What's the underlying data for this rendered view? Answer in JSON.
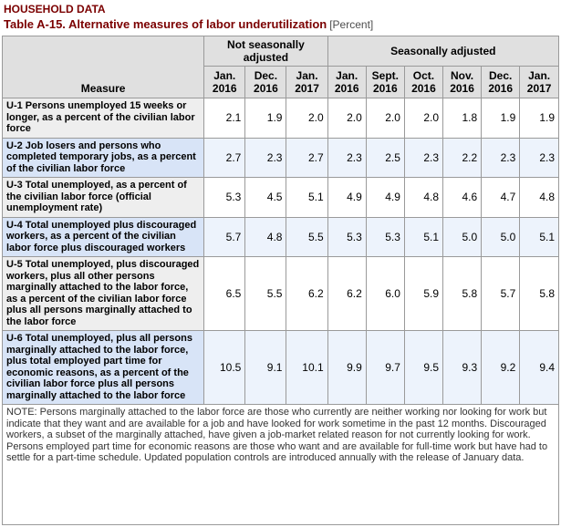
{
  "page_title": "HOUSEHOLD DATA",
  "table_title": "Table A-15. Alternative measures of labor underutilization",
  "table_title_qualifier": "[Percent]",
  "colors": {
    "heading": "#7b0000",
    "qualifier_text": "#4d4d4d",
    "header_bg": "#e0e0e0",
    "border": "#9a9a9a",
    "row_even_measure_bg": "#eeeeee",
    "row_even_value_bg": "#ffffff",
    "row_odd_measure_bg": "#d8e4f7",
    "row_odd_value_bg": "#edf3fc",
    "note_text": "#333333"
  },
  "table": {
    "measure_header": "Measure",
    "groups": [
      {
        "label": "Not seasonally adjusted",
        "span": 3
      },
      {
        "label": "Seasonally adjusted",
        "span": 6
      }
    ],
    "columns": [
      {
        "month": "Jan.",
        "year": "2016"
      },
      {
        "month": "Dec.",
        "year": "2016"
      },
      {
        "month": "Jan.",
        "year": "2017"
      },
      {
        "month": "Jan.",
        "year": "2016"
      },
      {
        "month": "Sept.",
        "year": "2016"
      },
      {
        "month": "Oct.",
        "year": "2016"
      },
      {
        "month": "Nov.",
        "year": "2016"
      },
      {
        "month": "Dec.",
        "year": "2016"
      },
      {
        "month": "Jan.",
        "year": "2017"
      }
    ],
    "rows": [
      {
        "measure": "U-1 Persons unemployed 15 weeks or longer, as a percent of the civilian labor force",
        "values": [
          "2.1",
          "1.9",
          "2.0",
          "2.0",
          "2.0",
          "2.0",
          "1.8",
          "1.9",
          "1.9"
        ]
      },
      {
        "measure": "U-2 Job losers and persons who completed temporary jobs, as a percent of the civilian labor force",
        "values": [
          "2.7",
          "2.3",
          "2.7",
          "2.3",
          "2.5",
          "2.3",
          "2.2",
          "2.3",
          "2.3"
        ]
      },
      {
        "measure": "U-3 Total unemployed, as a percent of the civilian labor force (official unemployment rate)",
        "values": [
          "5.3",
          "4.5",
          "5.1",
          "4.9",
          "4.9",
          "4.8",
          "4.6",
          "4.7",
          "4.8"
        ]
      },
      {
        "measure": "U-4 Total unemployed plus discouraged workers, as a percent of the civilian labor force plus discouraged workers",
        "values": [
          "5.7",
          "4.8",
          "5.5",
          "5.3",
          "5.3",
          "5.1",
          "5.0",
          "5.0",
          "5.1"
        ]
      },
      {
        "measure": "U-5 Total unemployed, plus discouraged workers, plus all other persons marginally attached to the labor force, as a percent of the civilian labor force plus all persons marginally attached to the labor force",
        "values": [
          "6.5",
          "5.5",
          "6.2",
          "6.2",
          "6.0",
          "5.9",
          "5.8",
          "5.7",
          "5.8"
        ]
      },
      {
        "measure": "U-6 Total unemployed, plus all persons marginally attached to the labor force, plus total employed part time for economic reasons, as a percent of the civilian labor force plus all persons marginally attached to the labor force",
        "values": [
          "10.5",
          "9.1",
          "10.1",
          "9.9",
          "9.7",
          "9.5",
          "9.3",
          "9.2",
          "9.4"
        ]
      }
    ]
  },
  "note": "NOTE: Persons marginally attached to the labor force are those who currently are neither working nor looking for work but indicate that they want and are available for a job and have looked for work sometime in the past 12 months. Discouraged workers, a subset of the marginally attached, have given a job-market related reason for not currently looking for work. Persons employed part time for economic reasons are those who want and are available for full-time work but have had to settle for a part-time schedule. Updated population controls are introduced annually with the release of January data."
}
